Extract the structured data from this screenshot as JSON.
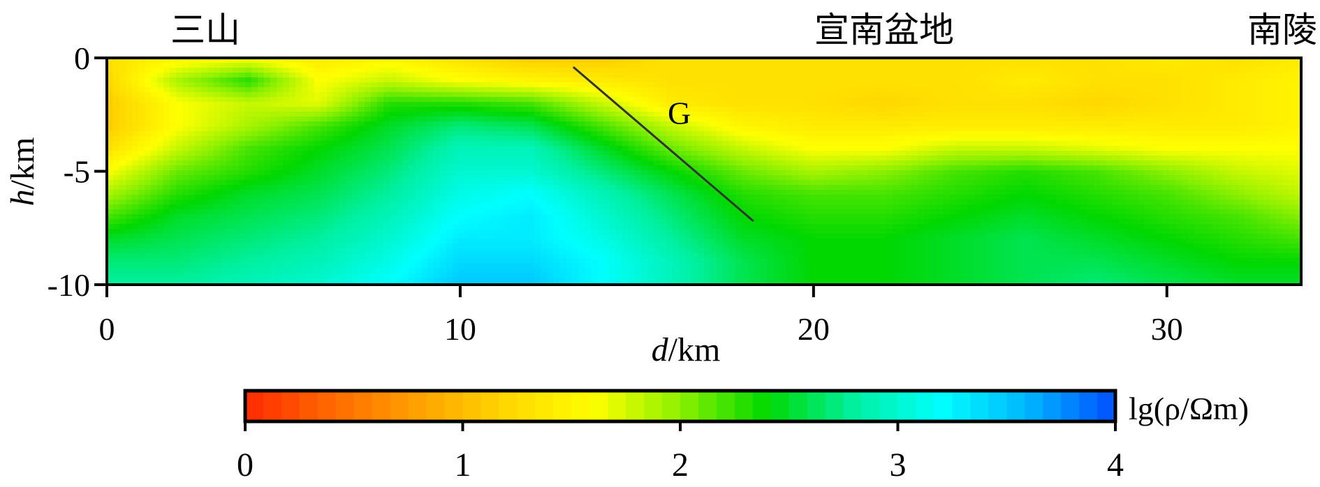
{
  "chart_data": {
    "type": "heatmap",
    "title": "",
    "location_labels": [
      {
        "text": "三山",
        "d": 1.8
      },
      {
        "text": "宣南盆地",
        "d": 22.0
      },
      {
        "text": "南陵",
        "d": 33.5
      }
    ],
    "xlabel_italic": "d",
    "xlabel_unit": "/km",
    "ylabel_italic": "h",
    "ylabel_unit": "/km",
    "xlim": [
      0,
      33.8
    ],
    "ylim": [
      -10,
      0
    ],
    "xticks": [
      0,
      10,
      20,
      30
    ],
    "xtick_labels": [
      "0",
      "10",
      "20",
      "30"
    ],
    "yticks": [
      0,
      -5,
      -10
    ],
    "ytick_labels": [
      "0",
      "-5",
      "-10"
    ],
    "fault": {
      "label": "G",
      "d": [
        13.2,
        18.3
      ],
      "h": [
        -0.4,
        -7.2
      ],
      "label_d": 16.2,
      "label_h": -2.9
    },
    "colorbar": {
      "label": "lg(ρ/Ωm)",
      "range": [
        0,
        4
      ],
      "ticks": [
        0,
        1,
        2,
        3,
        4
      ],
      "tick_labels": [
        "0",
        "1",
        "2",
        "3",
        "4"
      ],
      "colors": [
        "#ff2a00",
        "#ff6a00",
        "#ffa200",
        "#ffd700",
        "#ffff00",
        "#8cf000",
        "#00d800",
        "#00f0a0",
        "#00ffff",
        "#00b4ff",
        "#0050ff"
      ]
    },
    "grid": false,
    "x": [
      0,
      2,
      4,
      6,
      8,
      10,
      12,
      14,
      16,
      18,
      20,
      22,
      24,
      26,
      28,
      30,
      32,
      34
    ],
    "y": [
      0,
      -1,
      -2,
      -3,
      -4,
      -5,
      -6,
      -7,
      -8,
      -9,
      -10
    ],
    "z": [
      [
        1.3,
        1.5,
        1.6,
        1.4,
        1.5,
        1.3,
        1.1,
        1.1,
        1.3,
        1.3,
        1.3,
        1.3,
        1.3,
        1.3,
        1.3,
        1.4,
        1.3,
        1.4
      ],
      [
        1.2,
        1.9,
        2.3,
        1.6,
        1.8,
        1.6,
        1.5,
        1.4,
        1.3,
        1.3,
        1.3,
        1.3,
        1.3,
        1.4,
        1.3,
        1.3,
        1.4,
        1.5
      ],
      [
        1.1,
        1.6,
        1.8,
        1.7,
        2.3,
        2.3,
        2.2,
        1.8,
        1.4,
        1.3,
        1.3,
        1.2,
        1.3,
        1.3,
        1.2,
        1.3,
        1.4,
        1.5
      ],
      [
        1.1,
        1.6,
        1.9,
        2.2,
        2.5,
        2.7,
        2.6,
        2.2,
        1.8,
        1.5,
        1.4,
        1.4,
        1.4,
        1.4,
        1.4,
        1.4,
        1.4,
        1.5
      ],
      [
        1.3,
        1.8,
        2.2,
        2.4,
        2.6,
        2.9,
        2.9,
        2.5,
        2.1,
        1.8,
        1.6,
        1.6,
        1.8,
        1.8,
        1.7,
        1.6,
        1.6,
        1.6
      ],
      [
        1.6,
        2.1,
        2.3,
        2.5,
        2.7,
        3.0,
        3.0,
        2.7,
        2.4,
        2.1,
        1.9,
        2.0,
        2.2,
        2.3,
        2.2,
        2.0,
        1.8,
        1.7
      ],
      [
        1.9,
        2.3,
        2.5,
        2.6,
        2.8,
        3.1,
        3.2,
        2.9,
        2.6,
        2.3,
        2.2,
        2.2,
        2.3,
        2.4,
        2.3,
        2.2,
        2.0,
        1.8
      ],
      [
        2.2,
        2.5,
        2.6,
        2.7,
        2.9,
        3.2,
        3.3,
        3.0,
        2.7,
        2.4,
        2.3,
        2.3,
        2.4,
        2.5,
        2.4,
        2.3,
        2.2,
        2.0
      ],
      [
        2.5,
        2.6,
        2.7,
        2.8,
        3.0,
        3.3,
        3.3,
        3.1,
        2.8,
        2.5,
        2.4,
        2.4,
        2.5,
        2.6,
        2.5,
        2.4,
        2.3,
        2.2
      ],
      [
        2.7,
        2.7,
        2.8,
        2.9,
        3.1,
        3.4,
        3.4,
        3.2,
        2.9,
        2.6,
        2.4,
        2.4,
        2.5,
        2.6,
        2.6,
        2.5,
        2.4,
        2.4
      ],
      [
        2.8,
        2.8,
        2.9,
        3.0,
        3.2,
        3.5,
        3.5,
        3.2,
        2.9,
        2.6,
        2.4,
        2.4,
        2.5,
        2.6,
        2.7,
        2.6,
        2.5,
        2.5
      ]
    ]
  }
}
